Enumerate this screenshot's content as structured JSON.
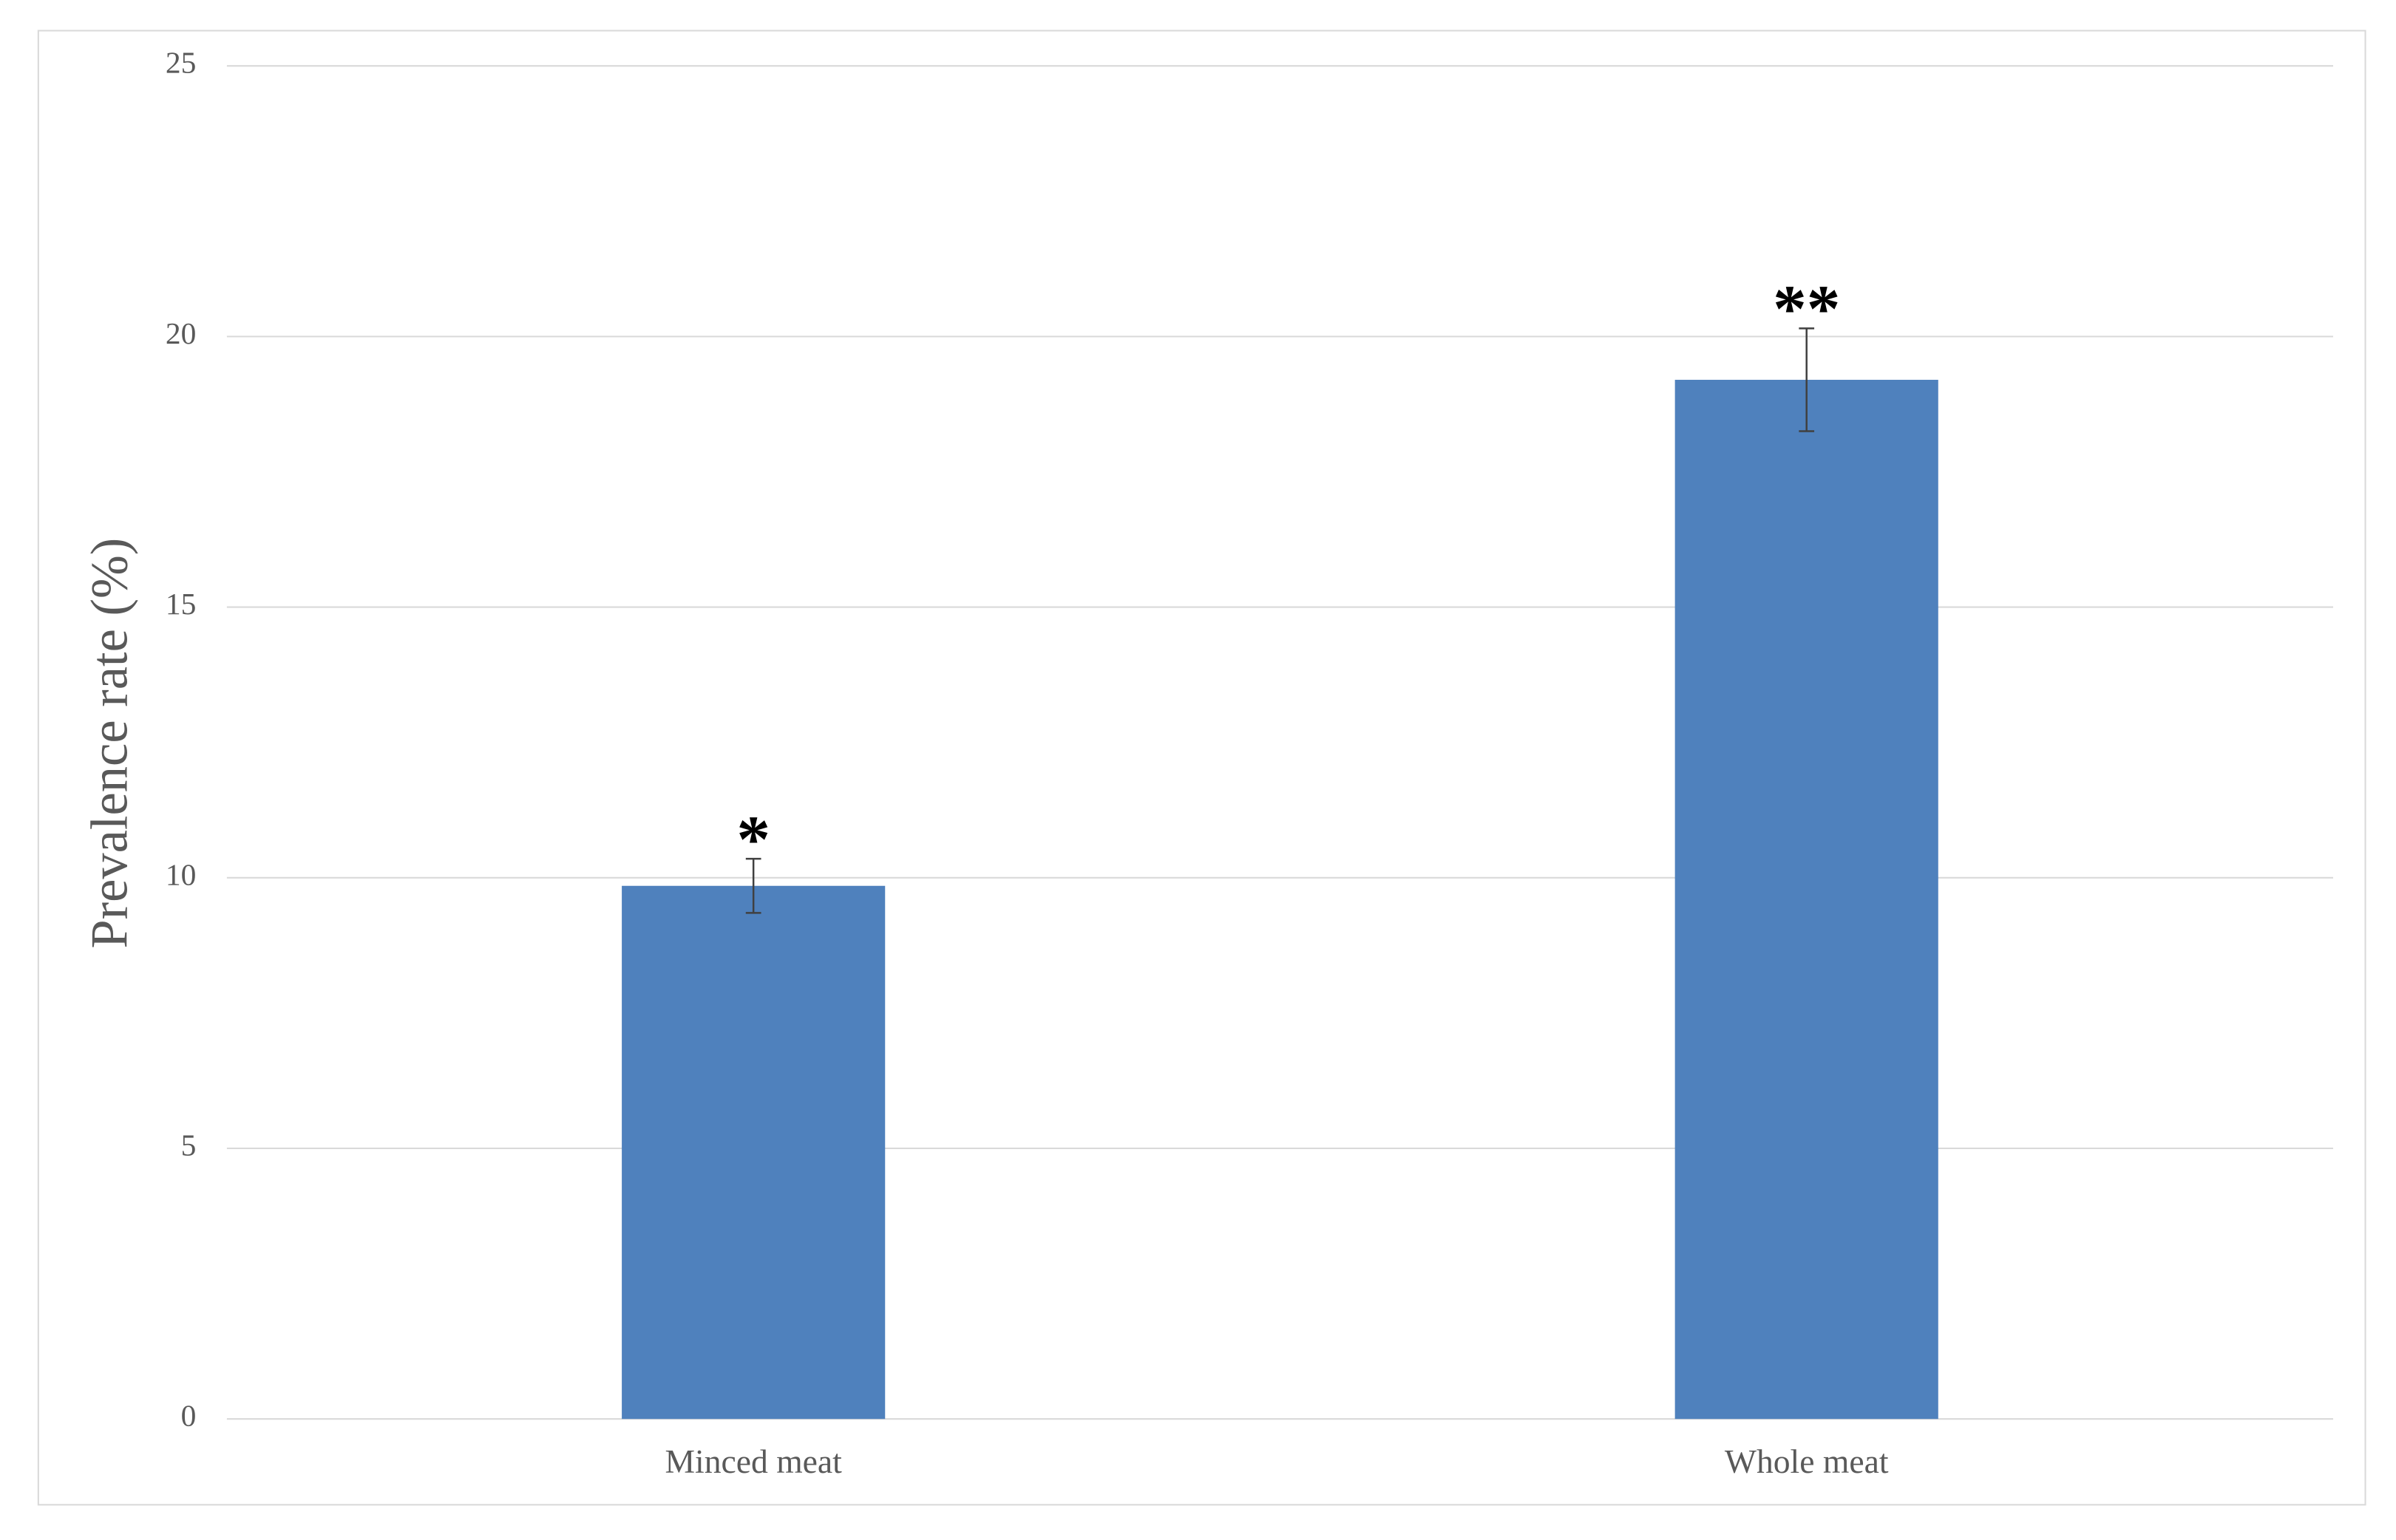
{
  "chart_data": {
    "type": "bar",
    "y_label": "Prevalence rate (%)",
    "categories": [
      "Minced meat",
      "Whole meat"
    ],
    "values": [
      9.85,
      19.2
    ],
    "errors": [
      0.5,
      0.95
    ],
    "annotations": [
      "*",
      "**"
    ],
    "color": "#4f81bd",
    "ylim": [
      0,
      25
    ],
    "yticks": [
      0,
      5,
      10,
      15,
      20,
      25
    ],
    "grid": true
  }
}
